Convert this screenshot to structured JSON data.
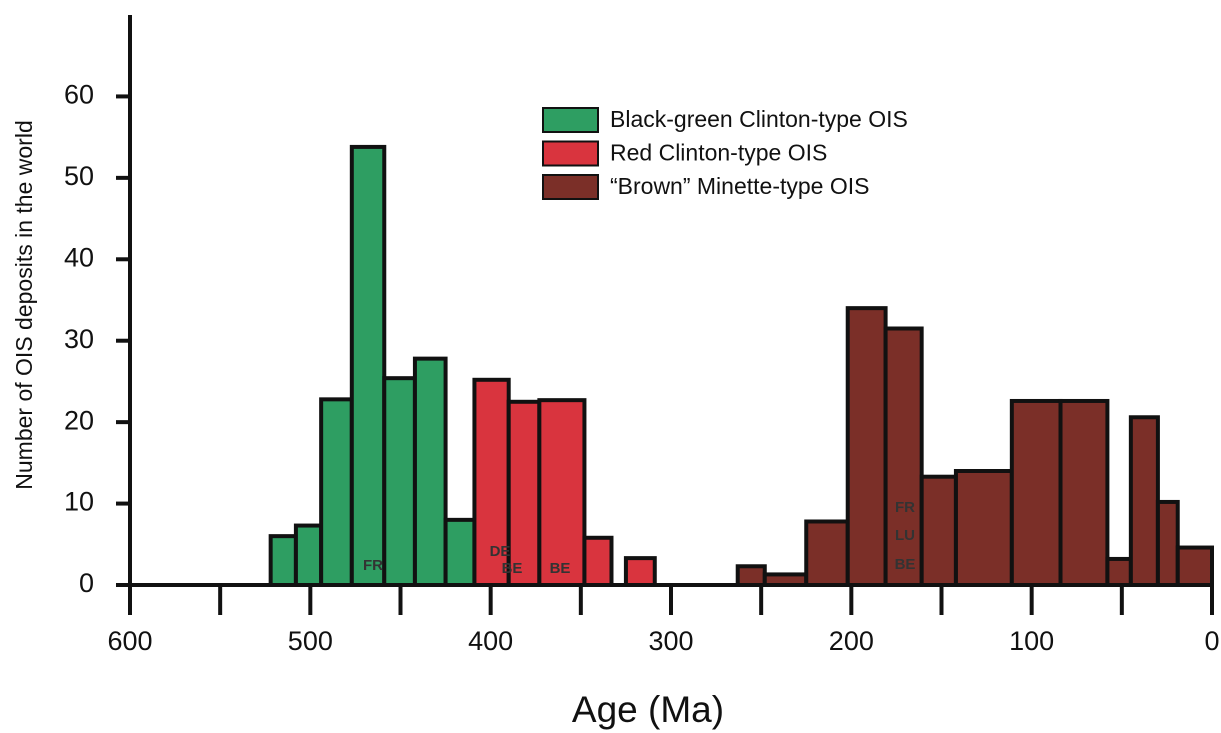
{
  "chart_data": {
    "type": "histogram",
    "x_label": "Age (Ma)",
    "y_label": "Number of OIS deposits in the world",
    "xlim": [
      600,
      0
    ],
    "ylim": [
      0,
      70
    ],
    "xticks": [
      600,
      500,
      400,
      300,
      200,
      100,
      0
    ],
    "xminorticks": [
      550,
      450,
      350,
      250,
      150,
      50
    ],
    "yticks": [
      0,
      10,
      20,
      30,
      40,
      50,
      60
    ],
    "legend_position": "upper right",
    "series": [
      {
        "name": "Black-green Clinton-type OIS",
        "color": "#2e9e62",
        "bins": [
          522,
          508,
          494,
          477,
          459,
          442,
          425,
          409
        ],
        "values": [
          6,
          7.3,
          22.8,
          53.8,
          25.4,
          27.8,
          8
        ]
      },
      {
        "name": "Red Clinton-type OIS",
        "color": "#d9343e",
        "bins": [
          409,
          390,
          373,
          348,
          333,
          325,
          309
        ],
        "values": [
          25.2,
          22.5,
          22.7,
          5.8,
          null,
          3.3
        ]
      },
      {
        "name": "“Brown” Minette-type OIS",
        "color": "#7b2f28",
        "bins": [
          263,
          248,
          225,
          202,
          181,
          161,
          142,
          111,
          84,
          58,
          45,
          30,
          19,
          0
        ],
        "values": [
          2.3,
          1.3,
          7.8,
          34,
          31.5,
          13.3,
          14,
          22.6,
          22.6,
          3.2,
          20.6,
          10.2,
          4.6
        ]
      }
    ],
    "annotations": [
      "FR",
      "DE",
      "BE",
      "BE",
      "FR",
      "LU",
      "BE"
    ]
  }
}
